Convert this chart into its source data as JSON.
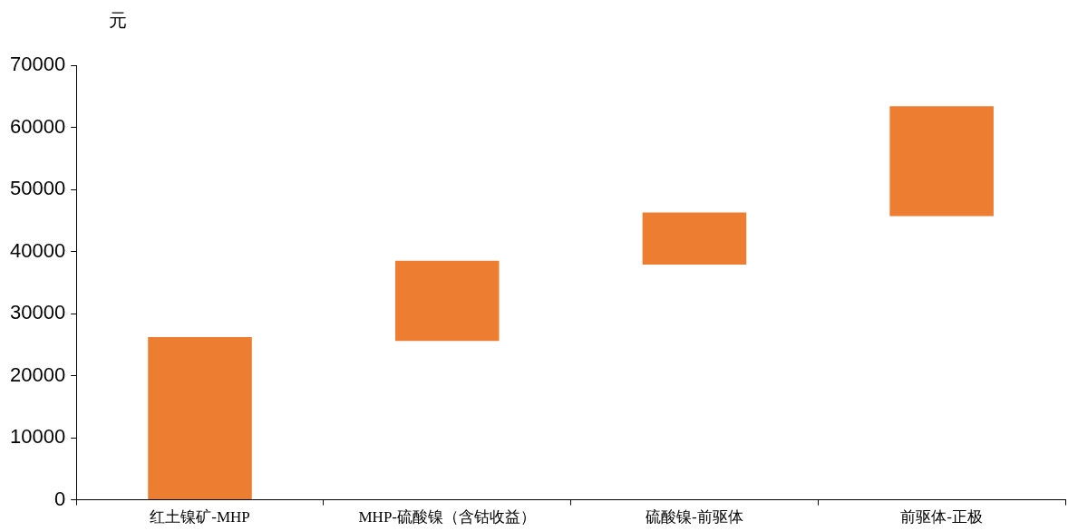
{
  "chart_data": {
    "type": "bar",
    "ylabel": "元",
    "categories": [
      "红土镍矿-MHP",
      "MHP-硫酸镍（含钴收益）",
      "硫酸镍-前驱体",
      "前驱体-正极"
    ],
    "values": [
      26200,
      12900,
      8400,
      17700
    ],
    "base": [
      0,
      25600,
      37900,
      45700
    ],
    "color": "#ed7d31",
    "ylim": [
      0,
      70000
    ],
    "yticks": [
      0,
      10000,
      20000,
      30000,
      40000,
      50000,
      60000,
      70000
    ],
    "grid": false,
    "legend": false
  }
}
